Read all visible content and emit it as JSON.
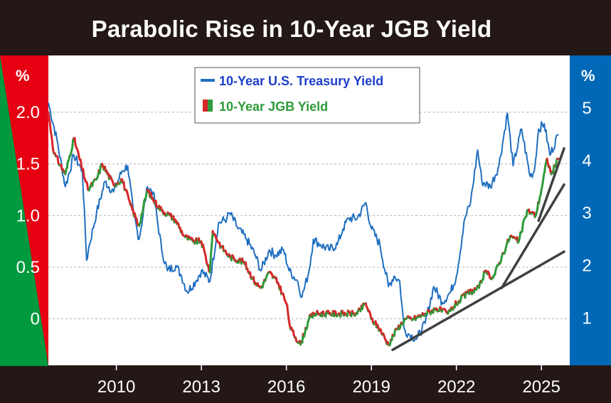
{
  "title": "Parabolic Rise in 10-Year JGB Yield",
  "colors": {
    "background": "#231815",
    "plot_bg": "#ffffff",
    "left_axis_red": "#e60012",
    "left_axis_green": "#009a3e",
    "right_axis_blue": "#0068b7",
    "ust_line": "#1f6fc0",
    "jgb_up": "#2e9a3a",
    "jgb_down": "#d7262a",
    "trend_lines": "#404040",
    "grid": "#b4b4b4"
  },
  "chart_data": {
    "type": "line",
    "title": "Parabolic Rise in 10-Year JGB Yield",
    "legend": {
      "placement": "top-center",
      "entries": [
        "10-Year U.S. Treasury Yield",
        "10-Year JGB Yield"
      ]
    },
    "left_axis": {
      "unit_label": "%",
      "ticks": [
        2.0,
        1.5,
        1.0,
        0.5,
        0
      ],
      "tick_labels": [
        "2.0",
        "1.5",
        "1.0",
        "0.5",
        "0"
      ],
      "ylim": [
        -0.45,
        2.55
      ]
    },
    "right_axis": {
      "unit_label": "%",
      "ticks": [
        5,
        4,
        3,
        2,
        1
      ],
      "tick_labels": [
        "5",
        "4",
        "3",
        "2",
        "1"
      ],
      "ylim": [
        0.1,
        6.0
      ]
    },
    "x_axis": {
      "tick_labels": [
        "2010",
        "2013",
        "2016",
        "2019",
        "2022",
        "2025"
      ],
      "ticks": [
        2010,
        2013,
        2016,
        2019,
        2022,
        2025
      ],
      "xlim": [
        2007.6,
        2026.0
      ]
    },
    "grid": true,
    "series": [
      {
        "name": "10-Year U.S. Treasury Yield",
        "axis": "right",
        "points": [
          [
            2007.6,
            5.1
          ],
          [
            2007.9,
            4.4
          ],
          [
            2008.2,
            3.5
          ],
          [
            2008.5,
            4.1
          ],
          [
            2008.8,
            3.8
          ],
          [
            2008.95,
            2.1
          ],
          [
            2009.05,
            2.4
          ],
          [
            2009.3,
            3.0
          ],
          [
            2009.6,
            3.6
          ],
          [
            2009.9,
            3.4
          ],
          [
            2010.2,
            3.8
          ],
          [
            2010.4,
            3.9
          ],
          [
            2010.6,
            3.0
          ],
          [
            2010.8,
            2.5
          ],
          [
            2011.1,
            3.5
          ],
          [
            2011.3,
            3.4
          ],
          [
            2011.6,
            2.3
          ],
          [
            2011.8,
            1.9
          ],
          [
            2012.1,
            2.0
          ],
          [
            2012.3,
            1.8
          ],
          [
            2012.5,
            1.5
          ],
          [
            2012.8,
            1.7
          ],
          [
            2013.0,
            1.9
          ],
          [
            2013.3,
            1.7
          ],
          [
            2013.6,
            2.8
          ],
          [
            2013.9,
            2.9
          ],
          [
            2014.0,
            3.0
          ],
          [
            2014.3,
            2.7
          ],
          [
            2014.6,
            2.5
          ],
          [
            2014.9,
            2.2
          ],
          [
            2015.1,
            1.9
          ],
          [
            2015.4,
            2.3
          ],
          [
            2015.6,
            2.2
          ],
          [
            2015.9,
            2.3
          ],
          [
            2016.1,
            1.9
          ],
          [
            2016.4,
            1.7
          ],
          [
            2016.55,
            1.4
          ],
          [
            2016.8,
            1.9
          ],
          [
            2016.95,
            2.5
          ],
          [
            2017.2,
            2.4
          ],
          [
            2017.5,
            2.3
          ],
          [
            2017.8,
            2.4
          ],
          [
            2018.0,
            2.7
          ],
          [
            2018.2,
            2.9
          ],
          [
            2018.5,
            2.9
          ],
          [
            2018.8,
            3.2
          ],
          [
            2019.0,
            2.7
          ],
          [
            2019.3,
            2.4
          ],
          [
            2019.6,
            1.6
          ],
          [
            2019.8,
            1.8
          ],
          [
            2020.0,
            1.7
          ],
          [
            2020.15,
            0.8
          ],
          [
            2020.3,
            0.7
          ],
          [
            2020.6,
            0.6
          ],
          [
            2020.9,
            0.9
          ],
          [
            2021.2,
            1.6
          ],
          [
            2021.5,
            1.3
          ],
          [
            2021.8,
            1.5
          ],
          [
            2022.0,
            1.8
          ],
          [
            2022.3,
            2.9
          ],
          [
            2022.5,
            3.2
          ],
          [
            2022.75,
            4.2
          ],
          [
            2022.9,
            3.6
          ],
          [
            2023.2,
            3.5
          ],
          [
            2023.5,
            3.9
          ],
          [
            2023.8,
            4.9
          ],
          [
            2024.0,
            3.9
          ],
          [
            2024.3,
            4.6
          ],
          [
            2024.6,
            3.7
          ],
          [
            2024.75,
            3.8
          ],
          [
            2024.9,
            4.6
          ],
          [
            2025.1,
            4.7
          ],
          [
            2025.3,
            4.1
          ],
          [
            2025.6,
            4.5
          ]
        ]
      },
      {
        "name": "10-Year JGB Yield",
        "axis": "left",
        "points": [
          [
            2007.6,
            2.0
          ],
          [
            2007.8,
            1.6
          ],
          [
            2008.2,
            1.4
          ],
          [
            2008.5,
            1.75
          ],
          [
            2008.8,
            1.45
          ],
          [
            2009.0,
            1.25
          ],
          [
            2009.3,
            1.35
          ],
          [
            2009.5,
            1.5
          ],
          [
            2009.9,
            1.3
          ],
          [
            2010.2,
            1.35
          ],
          [
            2010.5,
            1.1
          ],
          [
            2010.8,
            0.9
          ],
          [
            2011.1,
            1.25
          ],
          [
            2011.3,
            1.15
          ],
          [
            2011.6,
            1.05
          ],
          [
            2011.9,
            1.0
          ],
          [
            2012.1,
            0.95
          ],
          [
            2012.4,
            0.8
          ],
          [
            2012.7,
            0.75
          ],
          [
            2013.0,
            0.75
          ],
          [
            2013.3,
            0.45
          ],
          [
            2013.4,
            0.85
          ],
          [
            2013.7,
            0.7
          ],
          [
            2014.0,
            0.6
          ],
          [
            2014.5,
            0.55
          ],
          [
            2014.9,
            0.35
          ],
          [
            2015.1,
            0.3
          ],
          [
            2015.4,
            0.45
          ],
          [
            2015.7,
            0.35
          ],
          [
            2016.0,
            0.15
          ],
          [
            2016.15,
            -0.1
          ],
          [
            2016.5,
            -0.25
          ],
          [
            2016.8,
            0.0
          ],
          [
            2017.0,
            0.05
          ],
          [
            2017.5,
            0.05
          ],
          [
            2018.0,
            0.05
          ],
          [
            2018.5,
            0.05
          ],
          [
            2018.8,
            0.15
          ],
          [
            2019.0,
            0.0
          ],
          [
            2019.3,
            -0.1
          ],
          [
            2019.6,
            -0.25
          ],
          [
            2019.9,
            -0.1
          ],
          [
            2020.2,
            0.0
          ],
          [
            2020.5,
            0.0
          ],
          [
            2020.9,
            0.05
          ],
          [
            2021.3,
            0.1
          ],
          [
            2021.7,
            0.05
          ],
          [
            2022.0,
            0.15
          ],
          [
            2022.4,
            0.25
          ],
          [
            2022.8,
            0.3
          ],
          [
            2023.0,
            0.45
          ],
          [
            2023.3,
            0.4
          ],
          [
            2023.6,
            0.6
          ],
          [
            2023.9,
            0.8
          ],
          [
            2024.2,
            0.75
          ],
          [
            2024.5,
            1.05
          ],
          [
            2024.8,
            1.0
          ],
          [
            2025.0,
            1.25
          ],
          [
            2025.2,
            1.55
          ],
          [
            2025.35,
            1.4
          ],
          [
            2025.6,
            1.55
          ]
        ]
      }
    ],
    "trend_lines": [
      {
        "axis": "left",
        "points": [
          [
            2019.75,
            -0.3
          ],
          [
            2025.8,
            0.65
          ]
        ]
      },
      {
        "axis": "left",
        "points": [
          [
            2023.6,
            0.3
          ],
          [
            2025.8,
            1.3
          ]
        ]
      },
      {
        "axis": "left",
        "points": [
          [
            2024.9,
            0.95
          ],
          [
            2025.8,
            1.65
          ]
        ]
      }
    ]
  }
}
